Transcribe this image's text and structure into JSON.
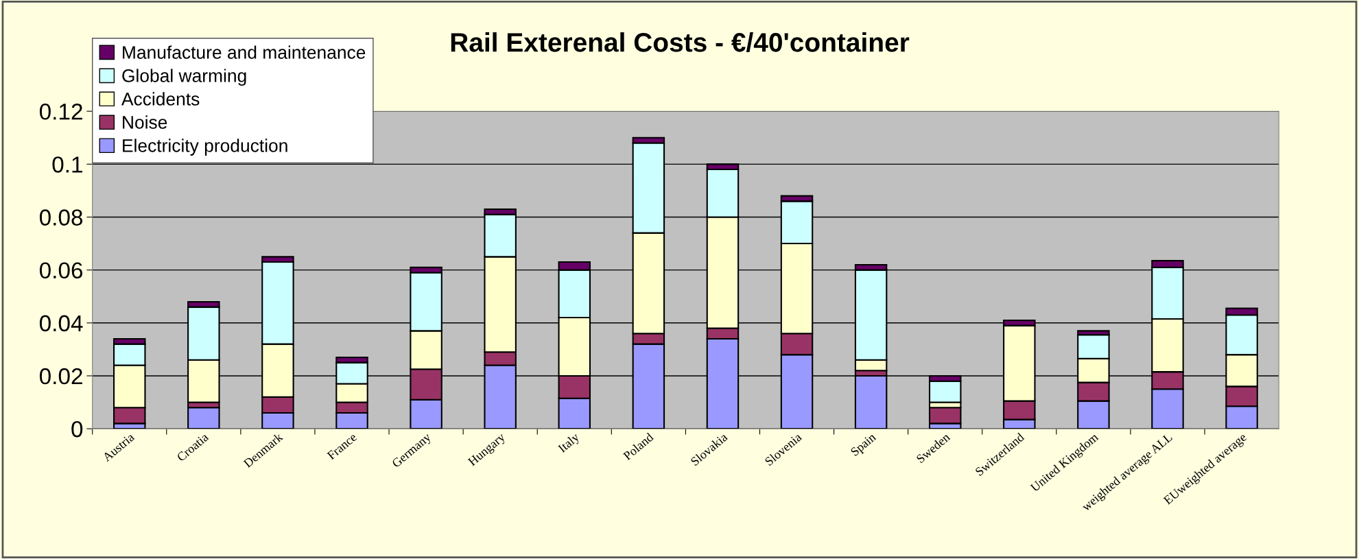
{
  "chart_data": {
    "type": "bar",
    "title": "Rail Exterenal Costs - €/40'container",
    "stacked": true,
    "categories": [
      "Austria",
      "Croatia",
      "Denmark",
      "France",
      "Germany",
      "Hungary",
      "Italy",
      "Poland",
      "Slovakia",
      "Slovenia",
      "Spain",
      "Sweden",
      "Switzerland",
      "United Kingdom",
      "weighted average ALL",
      "EUweighted average"
    ],
    "series": [
      {
        "name": "Electricity production",
        "color": "#9999ff",
        "values": [
          0.002,
          0.008,
          0.006,
          0.006,
          0.011,
          0.024,
          0.0115,
          0.032,
          0.034,
          0.028,
          0.02,
          0.002,
          0.0035,
          0.0105,
          0.015,
          0.0085
        ]
      },
      {
        "name": "Noise",
        "color": "#993366",
        "values": [
          0.006,
          0.002,
          0.006,
          0.004,
          0.0115,
          0.005,
          0.0085,
          0.004,
          0.004,
          0.008,
          0.002,
          0.006,
          0.007,
          0.007,
          0.0065,
          0.0075
        ]
      },
      {
        "name": "Accidents",
        "color": "#ffffcc",
        "values": [
          0.016,
          0.016,
          0.02,
          0.007,
          0.0145,
          0.036,
          0.022,
          0.038,
          0.042,
          0.034,
          0.004,
          0.002,
          0.0285,
          0.009,
          0.02,
          0.012
        ]
      },
      {
        "name": "Global warming",
        "color": "#ccffff",
        "values": [
          0.008,
          0.02,
          0.031,
          0.008,
          0.022,
          0.016,
          0.018,
          0.034,
          0.018,
          0.016,
          0.034,
          0.008,
          0.0,
          0.009,
          0.0195,
          0.015
        ]
      },
      {
        "name": "Manufacture and maintenance",
        "color": "#660066",
        "values": [
          0.002,
          0.002,
          0.002,
          0.002,
          0.002,
          0.002,
          0.003,
          0.002,
          0.002,
          0.002,
          0.002,
          0.002,
          0.002,
          0.0015,
          0.0025,
          0.0025
        ]
      }
    ],
    "ylim": [
      0,
      0.12
    ],
    "yticks": [
      0,
      0.02,
      0.04,
      0.06,
      0.08,
      0.1,
      0.12
    ],
    "grid": "y",
    "legend": "top left"
  }
}
